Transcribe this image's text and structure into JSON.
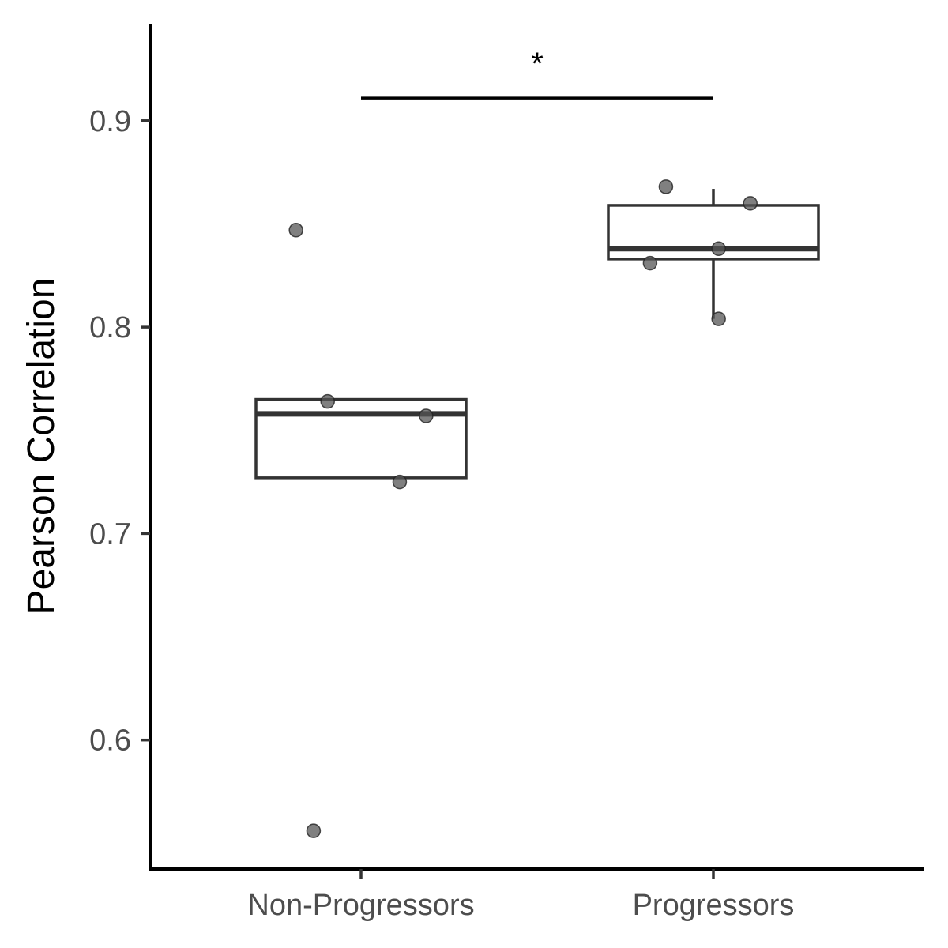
{
  "chart_data": {
    "type": "boxplot",
    "title": "",
    "xlabel": "",
    "ylabel": "Pearson Correlation",
    "ylim": [
      0.5375,
      0.947
    ],
    "yticks": [
      0.6,
      0.7,
      0.8,
      0.9
    ],
    "ytick_labels": [
      "0.6",
      "0.7",
      "0.8",
      "0.9"
    ],
    "categories": [
      "Non-Progressors",
      "Progressors"
    ],
    "grid": false,
    "colors": {
      "box_stroke": "#333333",
      "point_fill": "#555555",
      "axis": "#000000"
    },
    "boxes": [
      {
        "category": "Non-Progressors",
        "q1": 0.727,
        "median": 0.758,
        "q3": 0.765,
        "whisker_low": 0.727,
        "whisker_high": 0.765
      },
      {
        "category": "Progressors",
        "q1": 0.833,
        "median": 0.838,
        "q3": 0.859,
        "whisker_low": 0.804,
        "whisker_high": 0.867
      }
    ],
    "points": [
      {
        "category": "Non-Progressors",
        "jitter": -0.185,
        "value": 0.847
      },
      {
        "category": "Non-Progressors",
        "jitter": -0.095,
        "value": 0.764
      },
      {
        "category": "Non-Progressors",
        "jitter": 0.185,
        "value": 0.757
      },
      {
        "category": "Non-Progressors",
        "jitter": 0.11,
        "value": 0.725
      },
      {
        "category": "Non-Progressors",
        "jitter": -0.135,
        "value": 0.556
      },
      {
        "category": "Progressors",
        "jitter": -0.135,
        "value": 0.868
      },
      {
        "category": "Progressors",
        "jitter": 0.105,
        "value": 0.86
      },
      {
        "category": "Progressors",
        "jitter": 0.015,
        "value": 0.838
      },
      {
        "category": "Progressors",
        "jitter": -0.18,
        "value": 0.831
      },
      {
        "category": "Progressors",
        "jitter": 0.015,
        "value": 0.804
      }
    ],
    "significance": {
      "from": "Non-Progressors",
      "to": "Progressors",
      "y": 0.911,
      "label": "*"
    }
  }
}
